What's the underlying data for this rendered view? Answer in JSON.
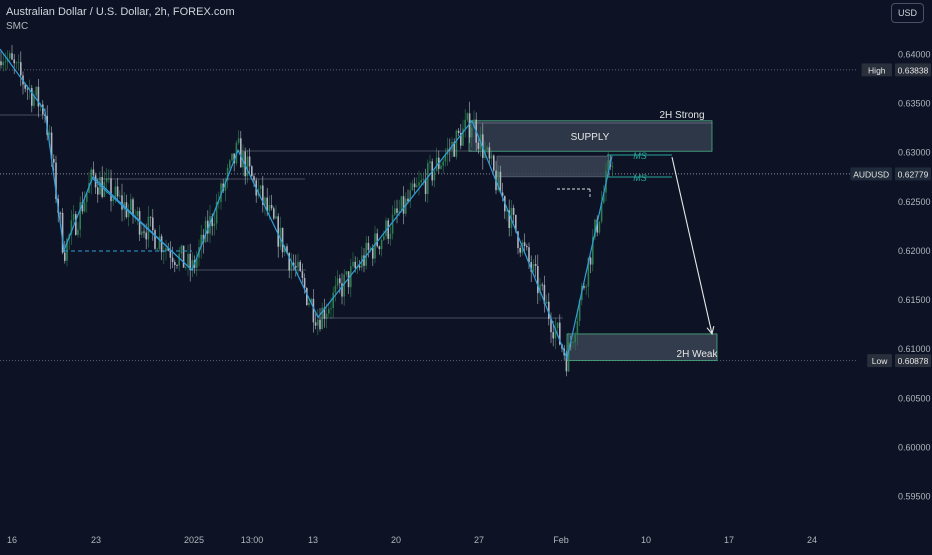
{
  "header": {
    "title": "Australian Dollar / U.S. Dollar, 2h, FOREX.com",
    "indicator": "SMC",
    "currency_button": "USD"
  },
  "colors": {
    "background": "#0d1324",
    "candle_up": "#2e7d4f",
    "candle_down": "#b0b4c0",
    "zigzag": "#2f9fd8",
    "zone_fill": "#3a4454",
    "zone_border": "#4caf84",
    "ms_line": "#26a69a",
    "dotted_level": "#5b6275",
    "arrow": "#e8e8e8"
  },
  "chart_data": {
    "type": "candlestick",
    "symbol": "AUDUSD",
    "timeframe": "2h",
    "y_axis": {
      "ticks": [
        "0.64000",
        "0.63500",
        "0.63000",
        "0.62500",
        "0.62000",
        "0.61500",
        "0.61000",
        "0.60500",
        "0.60000",
        "0.59500"
      ],
      "ylim": [
        0.5925,
        0.6425
      ]
    },
    "x_axis": {
      "ticks": [
        "16",
        "23",
        "2025",
        "13:00",
        "13",
        "20",
        "27",
        "Feb",
        "10",
        "17",
        "24"
      ]
    },
    "price_labels": [
      {
        "tag": "High",
        "value": "0.63838"
      },
      {
        "tag": "AUDUSD",
        "value": "0.62779"
      },
      {
        "tag": "Low",
        "value": "0.60878"
      }
    ],
    "annotations": {
      "supply_label": "SUPPLY",
      "strong_label": "2H Strong",
      "weak_label": "2H Weak",
      "ms_label_1": "MS",
      "ms_label_2": "MS"
    },
    "zones": [
      {
        "name": "supply",
        "y_top": 0.6332,
        "y_bottom": 0.6301
      },
      {
        "name": "mid-block",
        "y_top": 0.6296,
        "y_bottom": 0.6275
      },
      {
        "name": "demand-weak",
        "y_top": 0.6115,
        "y_bottom": 0.6088
      }
    ],
    "levels": {
      "high": 0.63838,
      "low": 0.60878,
      "current": 0.62779
    },
    "zigzag": [
      0.6405,
      0.6342,
      0.62,
      0.6275,
      0.618,
      0.6302,
      0.6132,
      0.6332,
      0.609,
      0.6296
    ],
    "projection": {
      "from": 0.6295,
      "to": 0.6115
    }
  }
}
